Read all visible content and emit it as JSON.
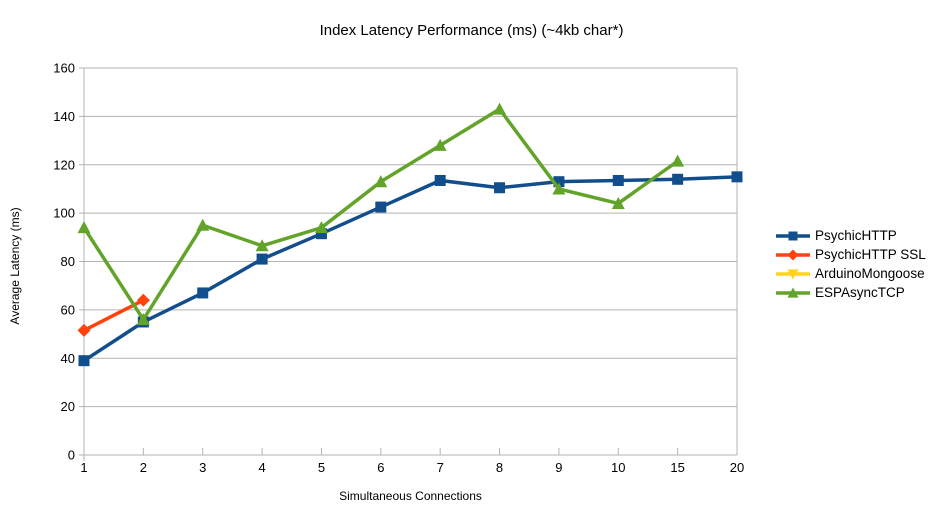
{
  "chart_data": {
    "type": "line",
    "title": "Index Latency Performance (ms) (~4kb char*)",
    "xlabel": "Simultaneous Connections",
    "ylabel": "Average Latency (ms)",
    "categories": [
      "1",
      "2",
      "3",
      "4",
      "5",
      "6",
      "7",
      "8",
      "9",
      "10",
      "15",
      "20"
    ],
    "ylim": [
      0,
      160
    ],
    "yticks": [
      0,
      20,
      40,
      60,
      80,
      100,
      120,
      140,
      160
    ],
    "grid": "horizontal",
    "legend_position": "right",
    "axis_color": "#b3b3b3",
    "series": [
      {
        "name": "PsychicHTTP",
        "color": "#114e8b",
        "marker": "square",
        "values": [
          39,
          55,
          67,
          81,
          91.5,
          102.5,
          113.5,
          110.5,
          113,
          113.5,
          114,
          115
        ]
      },
      {
        "name": "PsychicHTTP SSL",
        "color": "#ff420e",
        "marker": "diamond",
        "values": [
          51.5,
          64,
          null,
          null,
          null,
          null,
          null,
          null,
          null,
          null,
          null,
          null
        ]
      },
      {
        "name": "ArduinoMongoose",
        "color": "#ffd320",
        "marker": "triangle-down",
        "values": [
          null,
          null,
          null,
          null,
          null,
          null,
          null,
          null,
          null,
          null,
          null,
          null
        ]
      },
      {
        "name": "ESPAsyncTCP",
        "color": "#62a32a",
        "marker": "triangle-up",
        "values": [
          94,
          56,
          95,
          86.5,
          94,
          113,
          128,
          143,
          110,
          104,
          121.5,
          null
        ]
      }
    ]
  }
}
